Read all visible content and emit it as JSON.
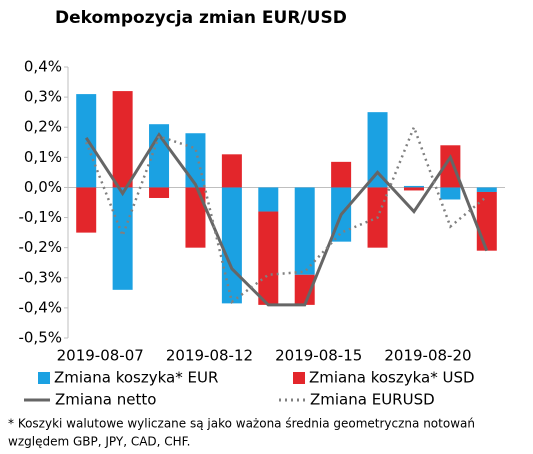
{
  "chart_data": {
    "type": "bar",
    "title": "Dekompozycja zmian EUR/USD",
    "categories": [
      "2019-08-07",
      null,
      null,
      "2019-08-12",
      null,
      null,
      "2019-08-15",
      null,
      null,
      "2019-08-20",
      null,
      null
    ],
    "series": [
      {
        "name": "Zmiana koszyka* EUR",
        "type": "bar",
        "color": "#1ba1e2",
        "values": [
          0.31,
          -0.34,
          0.21,
          0.18,
          -0.385,
          -0.08,
          -0.29,
          -0.18,
          0.25,
          0.005,
          -0.04,
          -0.015
        ]
      },
      {
        "name": "Zmiana koszyka* USD",
        "type": "bar",
        "color": "#e3262b",
        "values": [
          -0.15,
          0.32,
          -0.035,
          -0.2,
          0.11,
          -0.31,
          -0.1,
          0.085,
          -0.2,
          -0.01,
          0.14,
          -0.195
        ]
      },
      {
        "name": "Zmiana netto",
        "type": "line",
        "style": "solid",
        "color": "#666666",
        "values": [
          0.165,
          -0.02,
          0.175,
          0.01,
          -0.27,
          -0.39,
          -0.39,
          -0.09,
          0.05,
          -0.08,
          0.1,
          -0.21
        ]
      },
      {
        "name": "Zmiana EURUSD",
        "type": "line",
        "style": "dotted",
        "color": "#808080",
        "values": [
          0.15,
          -0.16,
          0.17,
          0.13,
          -0.38,
          -0.29,
          -0.28,
          -0.15,
          -0.1,
          0.2,
          -0.13,
          -0.03
        ]
      }
    ],
    "ylim": [
      -0.5,
      0.4
    ],
    "yticks": [
      {
        "value": -0.5,
        "label": "-0,5%"
      },
      {
        "value": -0.4,
        "label": "-0,4%"
      },
      {
        "value": -0.3,
        "label": "-0,3%"
      },
      {
        "value": -0.2,
        "label": "-0,2%"
      },
      {
        "value": -0.1,
        "label": "-0,1%"
      },
      {
        "value": 0,
        "label": "0,0%"
      },
      {
        "value": 0.1,
        "label": "0,1%"
      },
      {
        "value": 0.2,
        "label": "0,2%"
      },
      {
        "value": 0.3,
        "label": "0,3%"
      },
      {
        "value": 0.4,
        "label": "0,4%"
      }
    ],
    "grid": false,
    "legend": "bottom",
    "note_lines": [
      "* Koszyki walutowe wyliczane są jako ważona średnia geometryczna notowań",
      "względem GBP, JPY, CAD, CHF."
    ]
  }
}
